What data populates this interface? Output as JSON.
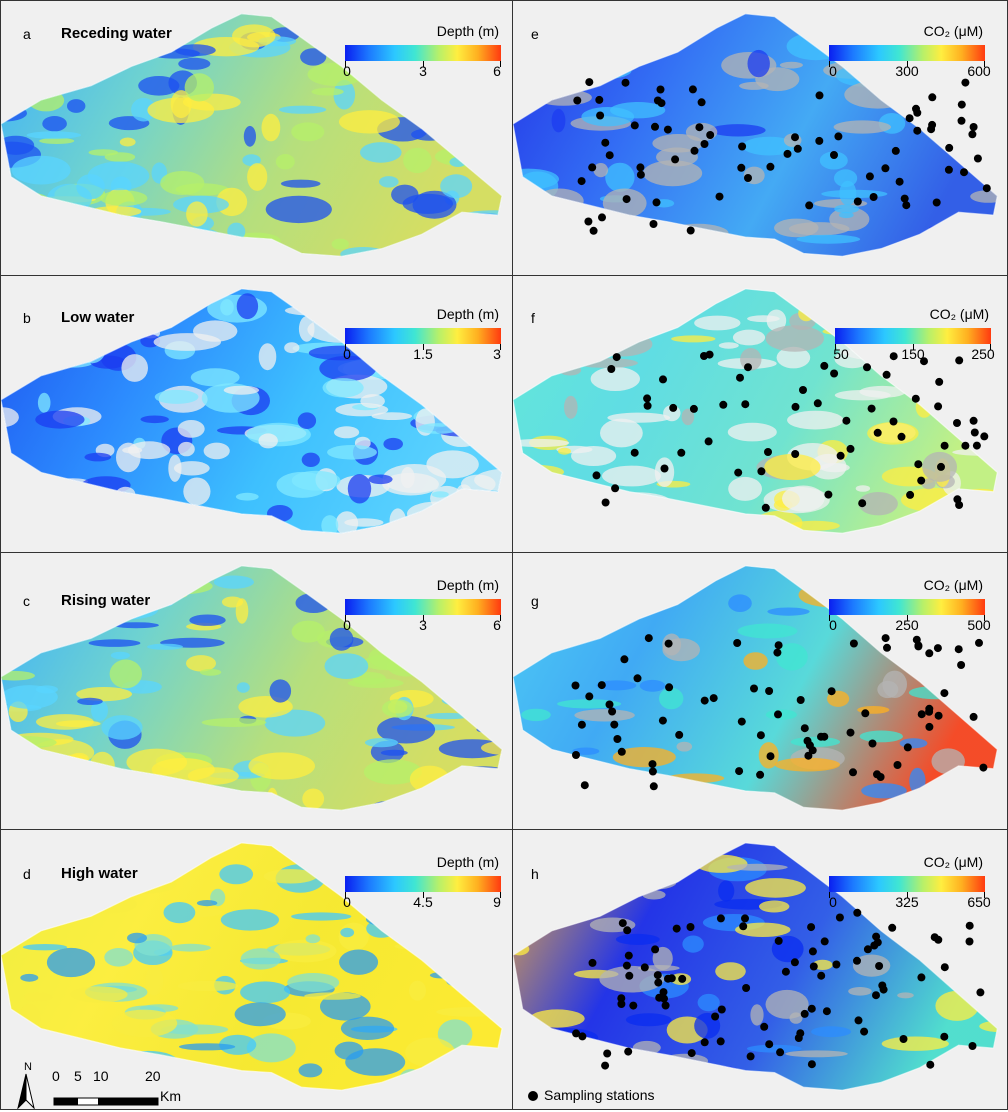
{
  "depth_panels": [
    {
      "letter": "a",
      "title": "Receding water",
      "legend_title": "Depth (m)",
      "ticks": [
        "0",
        "3",
        "6"
      ]
    },
    {
      "letter": "b",
      "title": "Low water",
      "legend_title": "Depth (m)",
      "ticks": [
        "0",
        "1.5",
        "3"
      ]
    },
    {
      "letter": "c",
      "title": "Rising water",
      "legend_title": "Depth (m)",
      "ticks": [
        "0",
        "3",
        "6"
      ]
    },
    {
      "letter": "d",
      "title": "High water",
      "legend_title": "Depth (m)",
      "ticks": [
        "0",
        "4.5",
        "9"
      ]
    }
  ],
  "co2_panels": [
    {
      "letter": "e",
      "legend_title": "CO₂ (μM)",
      "ticks": [
        "0",
        "300",
        "600"
      ]
    },
    {
      "letter": "f",
      "legend_title": "CO₂ (μM)",
      "ticks": [
        "50",
        "150",
        "250"
      ]
    },
    {
      "letter": "g",
      "legend_title": "CO₂ (μM)",
      "ticks": [
        "0",
        "250",
        "500"
      ]
    },
    {
      "letter": "h",
      "legend_title": "CO₂ (μM)",
      "ticks": [
        "0",
        "325",
        "650"
      ]
    }
  ],
  "scale_bar": {
    "north": "N",
    "labels": [
      "0",
      "5",
      "10",
      "20"
    ],
    "unit": "Km"
  },
  "station_legend": "Sampling stations",
  "colors": {
    "background": "#f0f0f0",
    "land": "#b4b4b4",
    "low_value": "#0a1ef0",
    "mid_value": "#40e6d2",
    "high_value": "#ff3a10",
    "station": "#000000"
  }
}
